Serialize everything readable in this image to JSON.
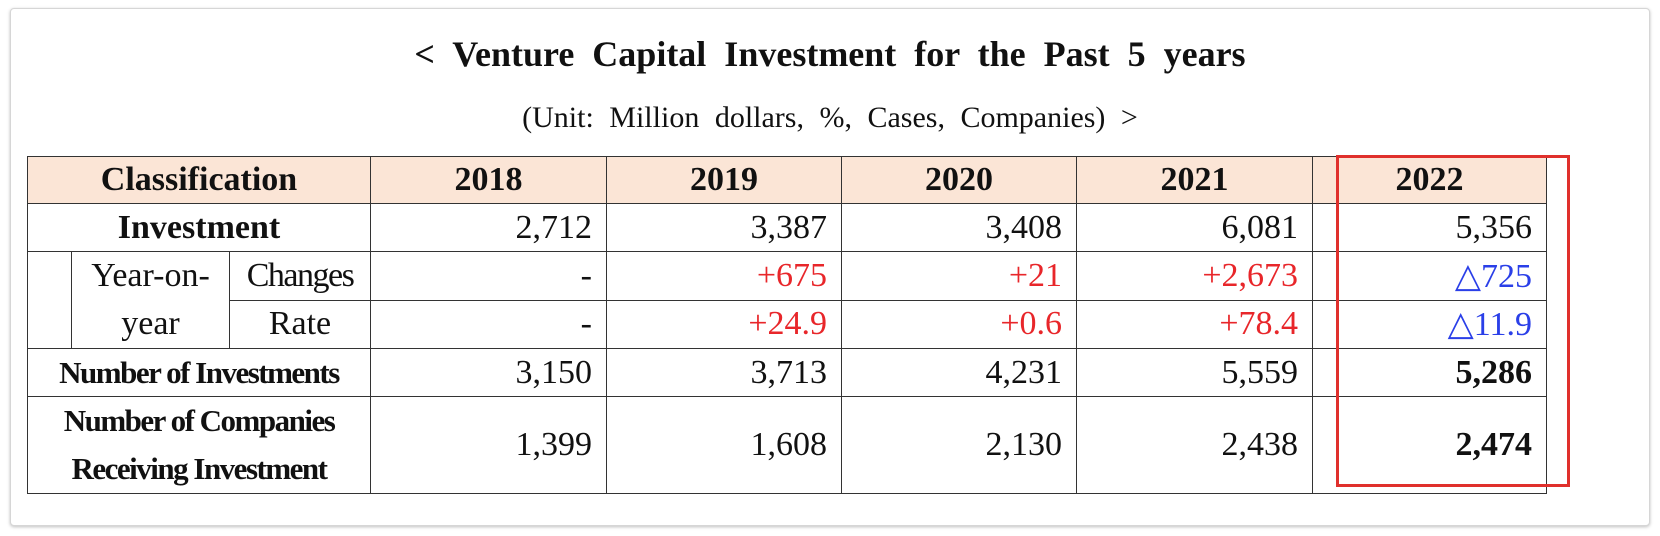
{
  "title": "< Venture Capital Investment for the Past 5 years",
  "subtitle": "(Unit: Million dollars, %, Cases, Companies) >",
  "colors": {
    "header_bg": "#fbe5d6",
    "increase": "#e8262a",
    "decrease": "#2a3fe8",
    "highlight_border": "#e0302c"
  },
  "chart_data": {
    "type": "table",
    "columns": [
      "Classification",
      "2018",
      "2019",
      "2020",
      "2021",
      "2022"
    ],
    "highlighted_column": "2022",
    "rows": {
      "investment": {
        "label": "Investment",
        "values": [
          "2,712",
          "3,387",
          "3,408",
          "6,081",
          "5,356"
        ]
      },
      "yoy": {
        "label_line1": "Year-on-",
        "label_line2": "year",
        "changes": {
          "label": "Changes",
          "values": [
            "-",
            "+675",
            "+21",
            "+2,673",
            "△725"
          ]
        },
        "rate": {
          "label": "Rate",
          "values": [
            "-",
            "+24.9",
            "+0.6",
            "+78.4",
            "△11.9"
          ]
        }
      },
      "num_investments": {
        "label": "Number of Investments",
        "values": [
          "3,150",
          "3,713",
          "4,231",
          "5,559",
          "5,286"
        ]
      },
      "num_companies": {
        "label_line1": "Number of Companies",
        "label_line2": "Receiving Investment",
        "values": [
          "1,399",
          "1,608",
          "2,130",
          "2,438",
          "2,474"
        ]
      }
    }
  }
}
